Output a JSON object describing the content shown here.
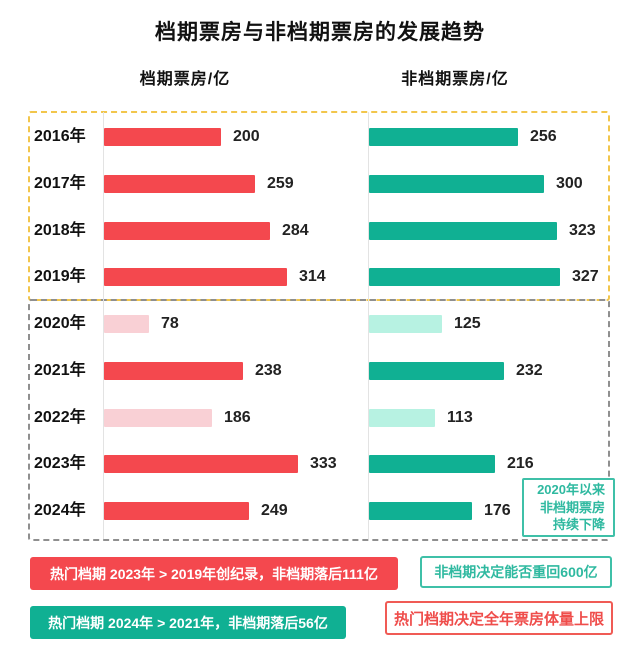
{
  "title": "档期票房与非档期票房的发展趋势",
  "column_headers": {
    "left": "档期票房/亿",
    "right": "非档期票房/亿"
  },
  "chart_data": {
    "type": "bar",
    "orientation": "horizontal",
    "unit": "亿",
    "categories": [
      "2016年",
      "2017年",
      "2018年",
      "2019年",
      "2020年",
      "2021年",
      "2022年",
      "2023年",
      "2024年"
    ],
    "series": [
      {
        "name": "档期票房/亿",
        "values": [
          200,
          259,
          284,
          314,
          78,
          238,
          186,
          333,
          249
        ]
      },
      {
        "name": "非档期票房/亿",
        "values": [
          256,
          300,
          323,
          327,
          125,
          232,
          113,
          216,
          176
        ]
      }
    ],
    "muted_category_indices": [
      4,
      6
    ],
    "groups": [
      {
        "label": "2016年-2019年",
        "row_start": 0,
        "row_end": 3,
        "border": "yellow-dashed"
      },
      {
        "label": "2020年-2024年",
        "row_start": 4,
        "row_end": 8,
        "border": "gray-dashed"
      }
    ],
    "xlim": [
      0,
      360
    ],
    "grid": false,
    "legend": "none"
  },
  "callout": {
    "lines": [
      "2020年以来",
      "非档期票房",
      "持续下降"
    ]
  },
  "annotations": [
    {
      "id": "record-2023",
      "text": "热门档期 2023年 > 2019年创纪录，非档期落后111亿",
      "style": "red-filled"
    },
    {
      "id": "return-600",
      "text": "非档期决定能否重回600亿",
      "style": "teal-outline"
    },
    {
      "id": "compare-2024",
      "text": "热门档期 2024年 > 2021年，非档期落后56亿",
      "style": "teal-filled"
    },
    {
      "id": "ceiling",
      "text": "热门档期决定全年票房体量上限",
      "style": "red-outline"
    }
  ],
  "colors": {
    "sched_bar": "#F4484E",
    "sched_bar_muted": "#F9D0D5",
    "nonsched_bar": "#10B093",
    "nonsched_bar_muted": "#B7F2E2",
    "group1_border": "#F2C64B",
    "group2_border": "#8F8F8F",
    "callout_accent": "#2FB9A0",
    "value_text": "#222222"
  }
}
